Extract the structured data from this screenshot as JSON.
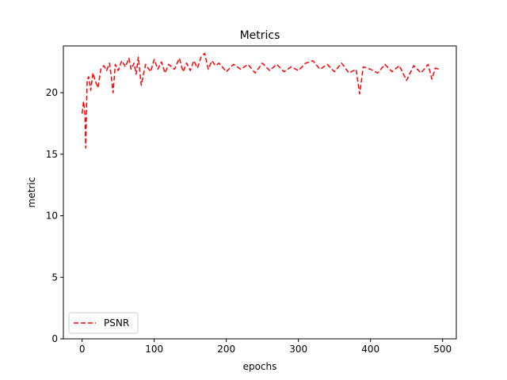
{
  "chart_data": {
    "type": "line",
    "title": "Metrics",
    "xlabel": "epochs",
    "ylabel": "metric",
    "xlim": [
      -26,
      519
    ],
    "ylim": [
      0,
      23.8
    ],
    "xticks": [
      0,
      100,
      200,
      300,
      400,
      500
    ],
    "yticks": [
      0,
      5,
      10,
      15,
      20
    ],
    "xtick_labels": [
      "0",
      "100",
      "200",
      "300",
      "400",
      "500"
    ],
    "ytick_labels": [
      "0",
      "5",
      "10",
      "15",
      "20"
    ],
    "grid": false,
    "legend_position": "lower-left",
    "series": [
      {
        "name": "PSNR",
        "color": "#ff0000",
        "line_style": "dashed",
        "x": [
          0,
          2,
          4,
          5,
          7,
          9,
          12,
          15,
          18,
          22,
          26,
          30,
          34,
          38,
          40,
          43,
          46,
          50,
          55,
          60,
          65,
          68,
          72,
          75,
          78,
          82,
          88,
          95,
          100,
          105,
          110,
          115,
          120,
          128,
          135,
          140,
          145,
          150,
          155,
          160,
          165,
          170,
          175,
          180,
          185,
          190,
          200,
          210,
          220,
          230,
          240,
          250,
          260,
          270,
          280,
          290,
          300,
          310,
          320,
          330,
          340,
          350,
          360,
          370,
          380,
          385,
          390,
          400,
          410,
          420,
          430,
          440,
          450,
          460,
          470,
          480,
          485,
          490,
          495
        ],
        "y": [
          18.3,
          19.3,
          18.2,
          15.5,
          21.0,
          21.3,
          20.2,
          21.6,
          21.0,
          20.4,
          21.9,
          22.2,
          21.8,
          22.4,
          21.5,
          20.0,
          22.3,
          21.8,
          22.6,
          22.1,
          22.8,
          21.9,
          22.4,
          21.5,
          22.9,
          20.6,
          22.3,
          21.7,
          22.7,
          21.9,
          22.5,
          21.6,
          22.3,
          21.9,
          22.8,
          21.7,
          22.4,
          21.8,
          22.6,
          22.0,
          22.9,
          23.2,
          21.9,
          22.6,
          22.2,
          22.4,
          21.7,
          22.3,
          21.9,
          22.3,
          21.6,
          22.4,
          21.8,
          22.3,
          21.7,
          22.1,
          21.8,
          22.4,
          22.6,
          21.9,
          22.3,
          21.7,
          22.4,
          21.6,
          21.9,
          19.9,
          22.1,
          21.9,
          21.6,
          22.3,
          21.7,
          22.2,
          21.0,
          22.2,
          21.6,
          22.3,
          21.1,
          22.0,
          21.9
        ]
      }
    ]
  }
}
